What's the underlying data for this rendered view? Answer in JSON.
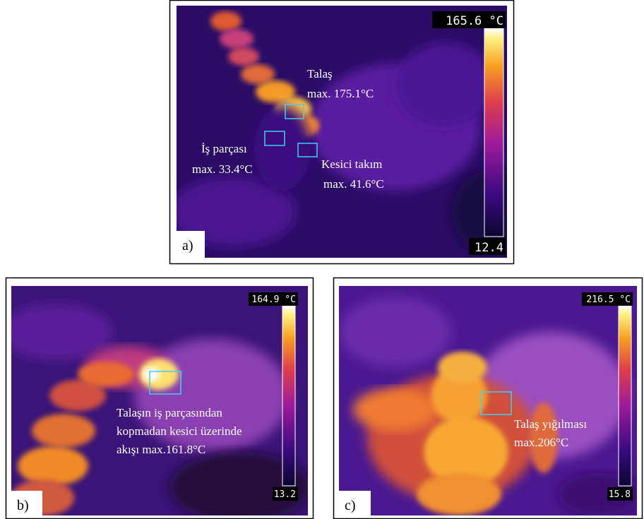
{
  "panels": [
    {
      "label": "a)",
      "scale": {
        "max": "165.6 °C",
        "min": "12.4"
      },
      "annotations": [
        {
          "lines": [
            "Talaş",
            "max. 175.1°C"
          ]
        },
        {
          "lines": [
            "İş parçası",
            "max. 33.4°C"
          ]
        },
        {
          "lines": [
            "Kesici takım",
            "max. 41.6°C"
          ]
        }
      ]
    },
    {
      "label": "b)",
      "scale": {
        "max": "164.9 °C",
        "min": "13.2"
      },
      "annotations": [
        {
          "lines": [
            "Talaşın iş parçasından",
            "kopmadan kesici üzerinde",
            "akışı max.161.8°C"
          ]
        }
      ]
    },
    {
      "label": "c)",
      "scale": {
        "max": "216.5 °C",
        "min": "15.8"
      },
      "annotations": [
        {
          "lines": [
            "Talaş yığılması",
            "max.206°C"
          ]
        }
      ]
    }
  ]
}
